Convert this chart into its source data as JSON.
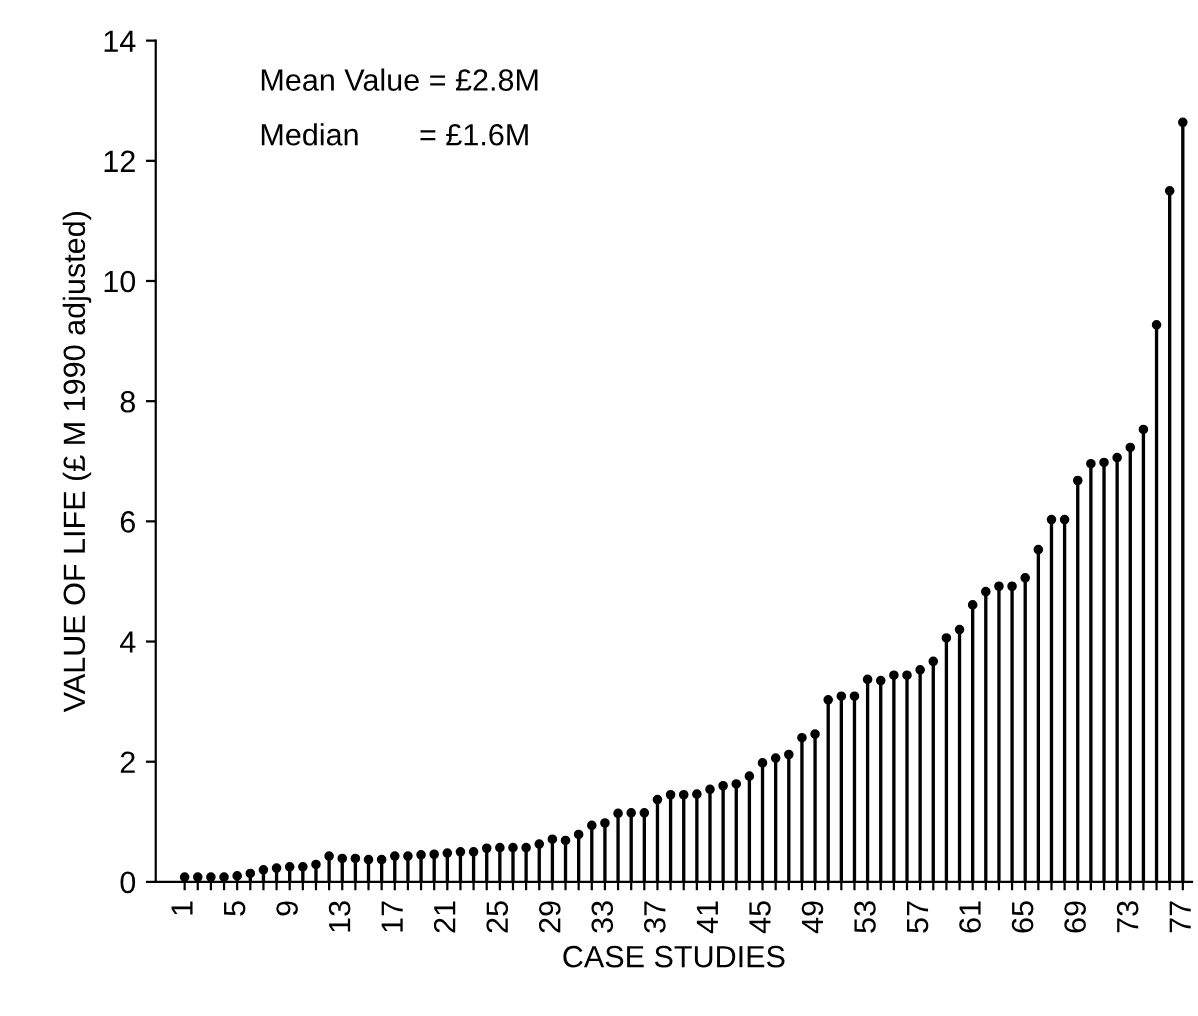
{
  "chart_data": {
    "type": "lollipop",
    "xlabel": "CASE STUDIES",
    "ylabel": "VALUE OF LIFE (£ M 1990 adjusted)",
    "annotations": [
      "Mean Value = £2.8M",
      "Median       = £1.6M"
    ],
    "categories": [
      "1",
      null,
      null,
      null,
      "5",
      null,
      null,
      null,
      "9",
      null,
      null,
      null,
      "13",
      null,
      null,
      null,
      "17",
      null,
      null,
      null,
      "21",
      null,
      null,
      null,
      "25",
      null,
      null,
      null,
      "29",
      null,
      null,
      null,
      "33",
      null,
      null,
      null,
      "37",
      null,
      null,
      null,
      "41",
      null,
      null,
      null,
      "45",
      null,
      null,
      null,
      "49",
      null,
      null,
      null,
      "53",
      null,
      null,
      null,
      "57",
      null,
      null,
      null,
      "61",
      null,
      null,
      null,
      "65",
      null,
      null,
      null,
      "69",
      null,
      null,
      null,
      "73",
      null,
      null,
      null,
      "77"
    ],
    "values": [
      0.08,
      0.08,
      0.08,
      0.08,
      0.1,
      0.14,
      0.2,
      0.23,
      0.25,
      0.25,
      0.29,
      0.43,
      0.39,
      0.39,
      0.37,
      0.37,
      0.43,
      0.43,
      0.45,
      0.46,
      0.48,
      0.5,
      0.5,
      0.56,
      0.57,
      0.57,
      0.57,
      0.63,
      0.71,
      0.69,
      0.79,
      0.94,
      0.98,
      1.14,
      1.15,
      1.15,
      1.37,
      1.45,
      1.45,
      1.46,
      1.54,
      1.6,
      1.63,
      1.76,
      1.98,
      2.06,
      2.12,
      2.4,
      2.46,
      3.03,
      3.09,
      3.09,
      3.37,
      3.35,
      3.44,
      3.44,
      3.53,
      3.67,
      4.06,
      4.2,
      4.61,
      4.83,
      4.92,
      4.92,
      5.06,
      5.53,
      6.03,
      6.03,
      6.68,
      6.96,
      6.98,
      7.06,
      7.23,
      7.53,
      9.27,
      11.5,
      12.64
    ],
    "color": "#000000",
    "marker": "circle",
    "ylim": [
      0,
      14
    ],
    "yticks": [
      0,
      2,
      4,
      6,
      8,
      10,
      12,
      14
    ]
  }
}
